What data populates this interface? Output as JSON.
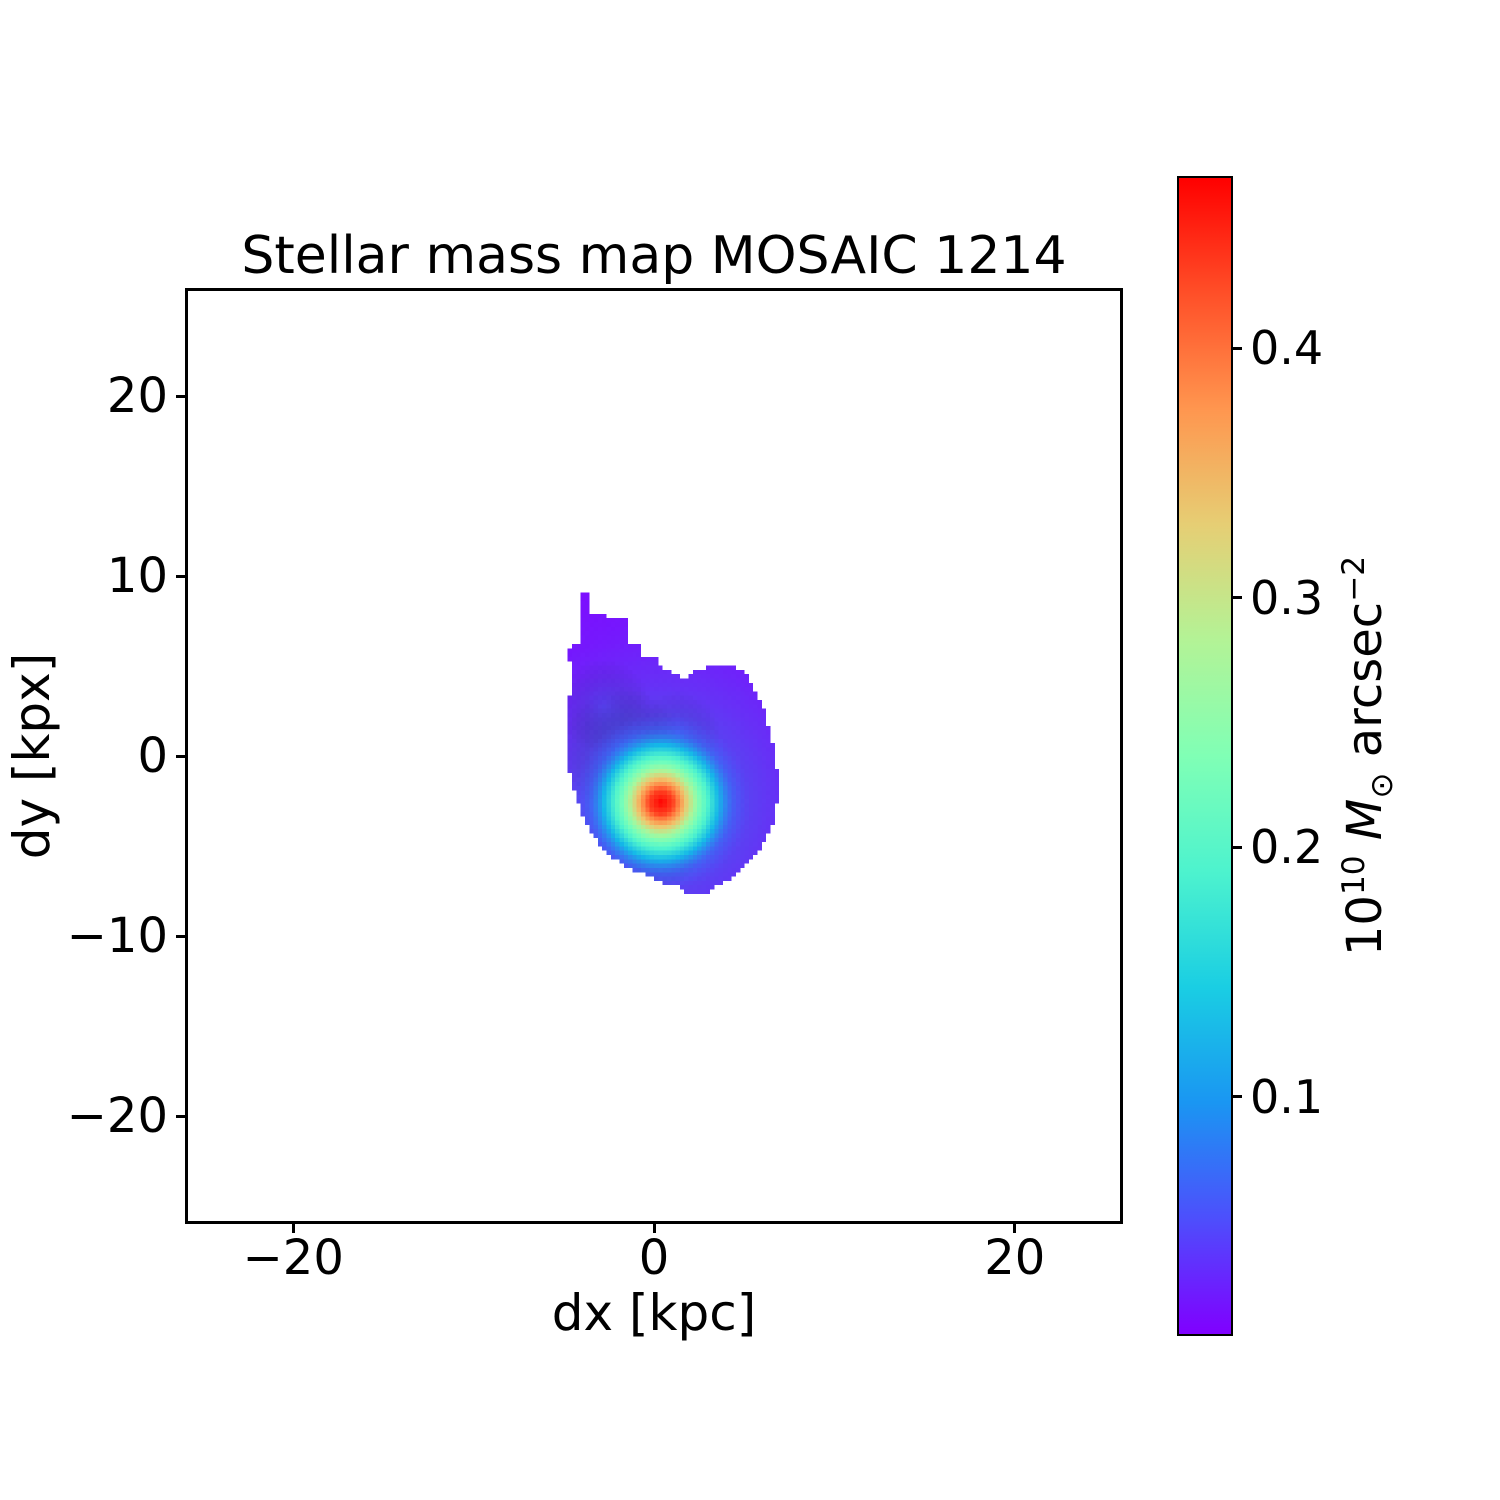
{
  "chart_data": {
    "type": "heatmap",
    "title": "Stellar mass map MOSAIC 1214",
    "xlabel": "dx [kpc]",
    "ylabel": "dy [kpx]",
    "xlim": [
      -26,
      26
    ],
    "ylim": [
      -26,
      26
    ],
    "grid": false,
    "background": "#ffffff",
    "colormap": "rainbow",
    "xticks": [
      {
        "value": -20,
        "label": "−20"
      },
      {
        "value": 0,
        "label": "0"
      },
      {
        "value": 20,
        "label": "20"
      }
    ],
    "yticks": [
      {
        "value": 20,
        "label": "20"
      },
      {
        "value": 10,
        "label": "10"
      },
      {
        "value": 0,
        "label": "0"
      },
      {
        "value": -10,
        "label": "−10"
      },
      {
        "value": -20,
        "label": "−20"
      }
    ],
    "colorbar": {
      "vmin": 0.004,
      "vmax": 0.469,
      "ticks": [
        {
          "value": 0.1,
          "label": "0.1"
        },
        {
          "value": 0.2,
          "label": "0.2"
        },
        {
          "value": 0.3,
          "label": "0.3"
        },
        {
          "value": 0.4,
          "label": "0.4"
        }
      ],
      "label_parts": {
        "mantissa": "10",
        "exponent": "10",
        "mass_symbol": "M",
        "sun_symbol": "⊙",
        "unit": "arcsec",
        "unit_exponent": "−2"
      },
      "gradient_stops": [
        [
          0.0,
          "#8000ff"
        ],
        [
          0.1,
          "#4d4ffc"
        ],
        [
          0.2,
          "#1a96f2"
        ],
        [
          0.3,
          "#1acee3"
        ],
        [
          0.4,
          "#4df3ce"
        ],
        [
          0.5,
          "#80ffb5"
        ],
        [
          0.6,
          "#b3f396"
        ],
        [
          0.7,
          "#e6ce74"
        ],
        [
          0.8,
          "#ff964f"
        ],
        [
          0.9,
          "#ff4f28"
        ],
        [
          1.0,
          "#ff0000"
        ]
      ]
    },
    "map_region": {
      "outline": [
        [
          -4.1,
          9.0
        ],
        [
          -3.6,
          9.0
        ],
        [
          -3.6,
          7.9
        ],
        [
          -2.6,
          7.9
        ],
        [
          -2.6,
          7.7
        ],
        [
          -1.5,
          7.7
        ],
        [
          -1.5,
          6.3
        ],
        [
          -0.65,
          6.3
        ],
        [
          -0.65,
          5.5
        ],
        [
          0.2,
          5.5
        ],
        [
          0.2,
          5.1
        ],
        [
          1.6,
          4.3
        ],
        [
          2.0,
          4.6
        ],
        [
          2.7,
          4.9
        ],
        [
          3.9,
          5.1
        ],
        [
          5.1,
          4.8
        ],
        [
          5.5,
          4.0
        ],
        [
          6.1,
          2.7
        ],
        [
          6.5,
          1.2
        ],
        [
          6.8,
          -0.5
        ],
        [
          7.1,
          -1.4
        ],
        [
          6.9,
          -2.5
        ],
        [
          6.6,
          -3.8
        ],
        [
          6.0,
          -5.1
        ],
        [
          5.2,
          -6.1
        ],
        [
          4.2,
          -6.9
        ],
        [
          3.0,
          -7.6
        ],
        [
          1.8,
          -7.8
        ],
        [
          1.4,
          -7.1
        ],
        [
          0.5,
          -7.1
        ],
        [
          -0.3,
          -6.7
        ],
        [
          -1.2,
          -6.3
        ],
        [
          -1.9,
          -5.9
        ],
        [
          -2.6,
          -5.4
        ],
        [
          -3.3,
          -4.6
        ],
        [
          -4.0,
          -3.4
        ],
        [
          -4.4,
          -2.0
        ],
        [
          -4.8,
          -0.5
        ],
        [
          -4.9,
          1.0
        ],
        [
          -4.8,
          2.5
        ],
        [
          -4.6,
          3.8
        ],
        [
          -4.5,
          4.9
        ],
        [
          -4.8,
          5.4
        ],
        [
          -4.7,
          6.2
        ],
        [
          -4.1,
          6.2
        ]
      ],
      "base_fill": {
        "cx": 0.4,
        "cy": -2.6,
        "radius": 13,
        "stops": [
          [
            0.0,
            "#3f6cf5"
          ],
          [
            0.25,
            "#5050ee"
          ],
          [
            0.5,
            "#6631f6"
          ],
          [
            0.75,
            "#7518fd"
          ],
          [
            1.0,
            "#7d0bff"
          ]
        ]
      },
      "core": {
        "cx": 0.4,
        "cy": -2.6,
        "radius": 5.0,
        "peak_value": 0.47,
        "stops": [
          [
            0.0,
            "#ff0000"
          ],
          [
            0.08,
            "#ff2a15"
          ],
          [
            0.13,
            "#ff3f20"
          ],
          [
            0.2,
            "#ff8947"
          ],
          [
            0.27,
            "#f0c56d"
          ],
          [
            0.36,
            "#a8f79c"
          ],
          [
            0.44,
            "#75feba"
          ],
          [
            0.52,
            "#4df3ce"
          ],
          [
            0.64,
            "#14b8e8"
          ],
          [
            0.8,
            "rgba(51,116,248,0.5)"
          ],
          [
            1.0,
            "rgba(77,79,252,0)"
          ]
        ]
      },
      "patches": [
        {
          "cx": -1.8,
          "cy": 0.3,
          "radius": 3.5,
          "color": "rgba(47,112,240,0.32)"
        },
        {
          "cx": -2.8,
          "cy": 2.8,
          "radius": 2.6,
          "color": "rgba(56,104,242,0.25)"
        },
        {
          "cx": 1.3,
          "cy": 1.2,
          "radius": 2.4,
          "color": "rgba(47,112,240,0.22)"
        },
        {
          "cx": 0.4,
          "cy": -5.2,
          "radius": 2.2,
          "color": "rgba(80,80,244,0.28)"
        }
      ]
    }
  }
}
